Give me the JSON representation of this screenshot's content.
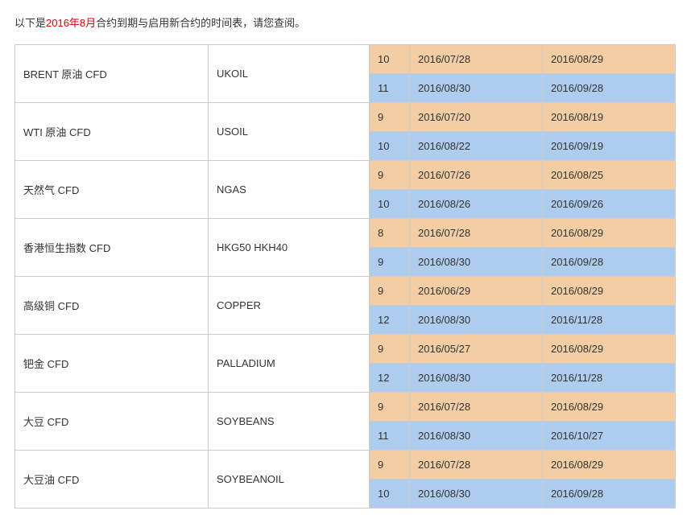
{
  "intro": {
    "prefix": "以下是",
    "highlight": "2016年8月",
    "suffix": "合约到期与启用新合约的时间表，请您查阅。"
  },
  "colors": {
    "orange_row": "#f3cea5",
    "blue_row": "#aecdee",
    "border": "#cccccc",
    "highlight_text": "#e60000",
    "text": "#333333",
    "background": "#ffffff"
  },
  "columns": {
    "name_width": 240,
    "symbol_width": 200,
    "num_width": 50,
    "date_width": 165
  },
  "products": [
    {
      "name": "BRENT 原油 CFD",
      "symbol": "UKOIL",
      "rows": [
        {
          "num": "10",
          "date1": "2016/07/28",
          "date2": "2016/08/29"
        },
        {
          "num": "11",
          "date1": "2016/08/30",
          "date2": "2016/09/28"
        }
      ]
    },
    {
      "name": "WTI 原油 CFD",
      "symbol": "USOIL",
      "rows": [
        {
          "num": "9",
          "date1": "2016/07/20",
          "date2": "2016/08/19"
        },
        {
          "num": "10",
          "date1": "2016/08/22",
          "date2": "2016/09/19"
        }
      ]
    },
    {
      "name": "天然气 CFD",
      "symbol": "NGAS",
      "rows": [
        {
          "num": "9",
          "date1": "2016/07/26",
          "date2": "2016/08/25"
        },
        {
          "num": "10",
          "date1": "2016/08/26",
          "date2": "2016/09/26"
        }
      ]
    },
    {
      "name": "香港恒生指数 CFD",
      "symbol": "HKG50 HKH40",
      "rows": [
        {
          "num": "8",
          "date1": "2016/07/28",
          "date2": "2016/08/29"
        },
        {
          "num": "9",
          "date1": "2016/08/30",
          "date2": "2016/09/28"
        }
      ]
    },
    {
      "name": "高级铜 CFD",
      "symbol": "COPPER",
      "rows": [
        {
          "num": "9",
          "date1": "2016/06/29",
          "date2": "2016/08/29"
        },
        {
          "num": "12",
          "date1": "2016/08/30",
          "date2": "2016/11/28"
        }
      ]
    },
    {
      "name": "钯金 CFD",
      "symbol": "PALLADIUM",
      "rows": [
        {
          "num": "9",
          "date1": "2016/05/27",
          "date2": "2016/08/29"
        },
        {
          "num": "12",
          "date1": "2016/08/30",
          "date2": "2016/11/28"
        }
      ]
    },
    {
      "name": "大豆 CFD",
      "symbol": "SOYBEANS",
      "rows": [
        {
          "num": "9",
          "date1": "2016/07/28",
          "date2": "2016/08/29"
        },
        {
          "num": "11",
          "date1": "2016/08/30",
          "date2": "2016/10/27"
        }
      ]
    },
    {
      "name": "大豆油 CFD",
      "symbol": "SOYBEANOIL",
      "rows": [
        {
          "num": "9",
          "date1": "2016/07/28",
          "date2": "2016/08/29"
        },
        {
          "num": "10",
          "date1": "2016/08/30",
          "date2": "2016/09/28"
        }
      ]
    }
  ]
}
